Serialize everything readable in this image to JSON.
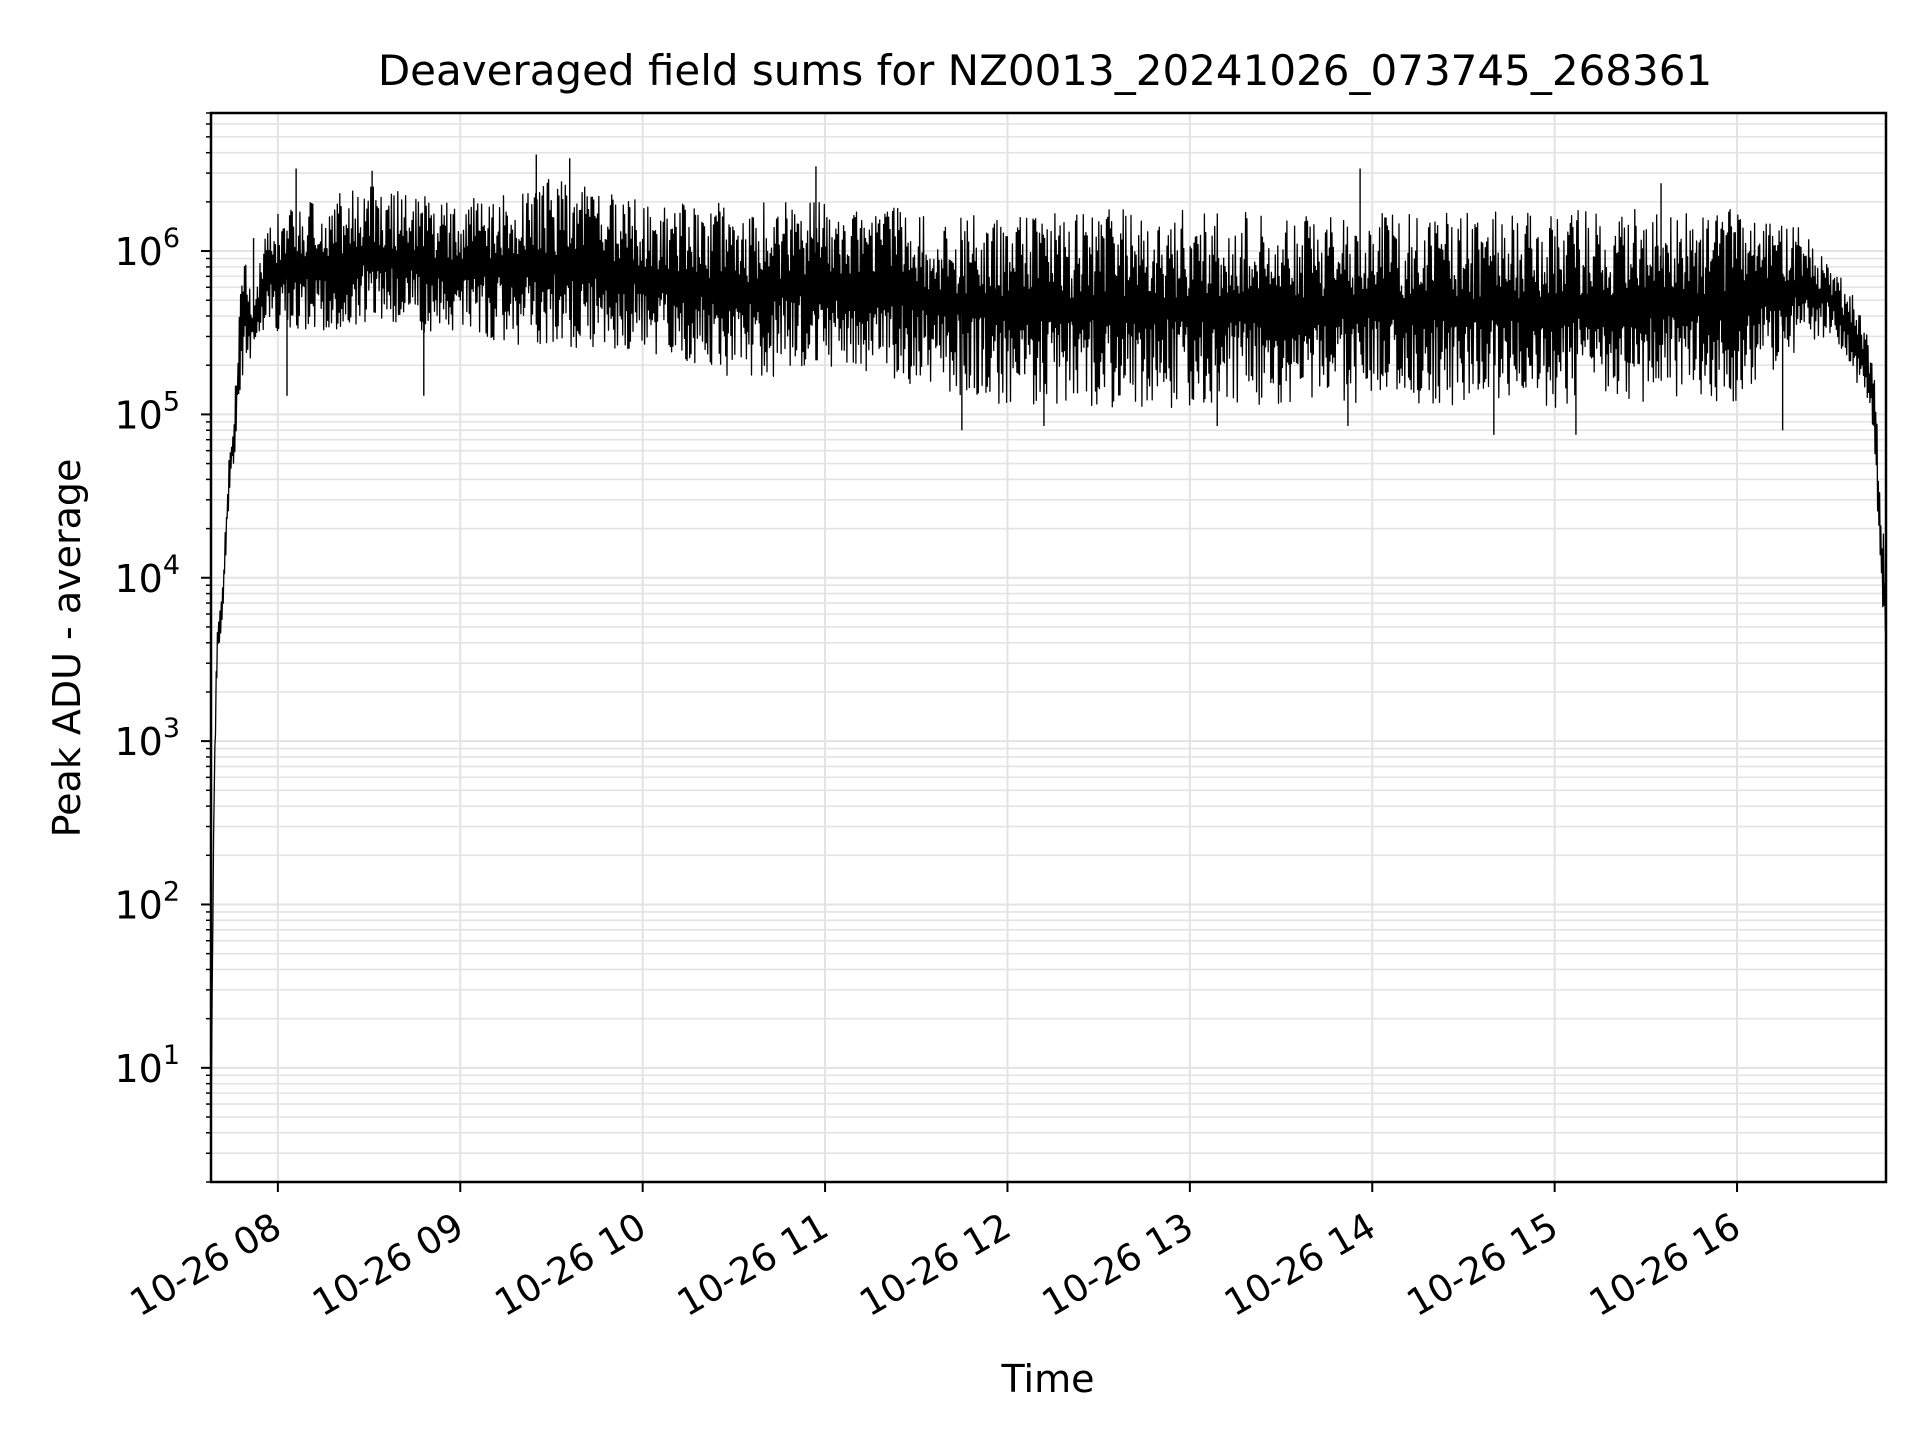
{
  "chart_data": {
    "type": "line",
    "title": "Deaveraged field sums for NZ0013_20241026_073745_268361",
    "xlabel": "Time",
    "ylabel": "Peak ADU - average",
    "y_scale": "log",
    "ylim": [
      2.0,
      7000000
    ],
    "xlim": [
      "2024-10-26 07:38",
      "2024-10-26 16:49"
    ],
    "grid": true,
    "grid_minor": true,
    "line_color": "#000000",
    "x_ticks": [
      {
        "at": "2024-10-26 08:00",
        "label": "10-26 08"
      },
      {
        "at": "2024-10-26 09:00",
        "label": "10-26 09"
      },
      {
        "at": "2024-10-26 10:00",
        "label": "10-26 10"
      },
      {
        "at": "2024-10-26 11:00",
        "label": "10-26 11"
      },
      {
        "at": "2024-10-26 12:00",
        "label": "10-26 12"
      },
      {
        "at": "2024-10-26 13:00",
        "label": "10-26 13"
      },
      {
        "at": "2024-10-26 14:00",
        "label": "10-26 14"
      },
      {
        "at": "2024-10-26 15:00",
        "label": "10-26 15"
      },
      {
        "at": "2024-10-26 16:00",
        "label": "10-26 16"
      }
    ],
    "y_ticks": [
      {
        "value": 10,
        "base": "10",
        "exp": "1"
      },
      {
        "value": 100,
        "base": "10",
        "exp": "2"
      },
      {
        "value": 1000,
        "base": "10",
        "exp": "3"
      },
      {
        "value": 10000,
        "base": "10",
        "exp": "4"
      },
      {
        "value": 100000,
        "base": "10",
        "exp": "5"
      },
      {
        "value": 1000000,
        "base": "10",
        "exp": "6"
      }
    ],
    "series": [
      {
        "envelope": [
          {
            "t": "2024-10-26 07:38",
            "low": 4,
            "high": 4
          },
          {
            "t": "2024-10-26 07:39",
            "low": 300,
            "high": 800
          },
          {
            "t": "2024-10-26 07:40",
            "low": 3000,
            "high": 5000
          },
          {
            "t": "2024-10-26 07:42",
            "low": 6000,
            "high": 12000
          },
          {
            "t": "2024-10-26 07:44",
            "low": 30000,
            "high": 60000
          },
          {
            "t": "2024-10-26 07:46",
            "low": 60000,
            "high": 150000
          },
          {
            "t": "2024-10-26 07:48",
            "low": 150000,
            "high": 1200000
          },
          {
            "t": "2024-10-26 07:52",
            "low": 250000,
            "high": 450000
          },
          {
            "t": "2024-10-26 07:56",
            "low": 350000,
            "high": 1500000
          },
          {
            "t": "2024-10-26 08:00",
            "low": 300000,
            "high": 1800000
          },
          {
            "t": "2024-10-26 08:30",
            "low": 350000,
            "high": 2500000
          },
          {
            "t": "2024-10-26 09:00",
            "low": 300000,
            "high": 2000000
          },
          {
            "t": "2024-10-26 09:30",
            "low": 250000,
            "high": 2800000
          },
          {
            "t": "2024-10-26 10:00",
            "low": 250000,
            "high": 2000000
          },
          {
            "t": "2024-10-26 10:30",
            "low": 150000,
            "high": 2000000
          },
          {
            "t": "2024-10-26 11:00",
            "low": 200000,
            "high": 2000000
          },
          {
            "t": "2024-10-26 11:30",
            "low": 150000,
            "high": 1800000
          },
          {
            "t": "2024-10-26 12:00",
            "low": 110000,
            "high": 1700000
          },
          {
            "t": "2024-10-26 12:30",
            "low": 110000,
            "high": 1800000
          },
          {
            "t": "2024-10-26 13:00",
            "low": 110000,
            "high": 1800000
          },
          {
            "t": "2024-10-26 13:30",
            "low": 110000,
            "high": 1700000
          },
          {
            "t": "2024-10-26 14:00",
            "low": 120000,
            "high": 1700000
          },
          {
            "t": "2024-10-26 14:30",
            "low": 110000,
            "high": 1700000
          },
          {
            "t": "2024-10-26 15:00",
            "low": 110000,
            "high": 1800000
          },
          {
            "t": "2024-10-26 15:30",
            "low": 120000,
            "high": 1800000
          },
          {
            "t": "2024-10-26 16:00",
            "low": 120000,
            "high": 1800000
          },
          {
            "t": "2024-10-26 16:20",
            "low": 250000,
            "high": 1400000
          },
          {
            "t": "2024-10-26 16:30",
            "low": 300000,
            "high": 900000
          },
          {
            "t": "2024-10-26 16:40",
            "low": 150000,
            "high": 500000
          },
          {
            "t": "2024-10-26 16:45",
            "low": 80000,
            "high": 200000
          },
          {
            "t": "2024-10-26 16:48",
            "low": 3000,
            "high": 20000
          }
        ],
        "spikes": [
          {
            "t": "2024-10-26 07:52",
            "value": 1200000
          },
          {
            "t": "2024-10-26 08:06",
            "value": 3200000
          },
          {
            "t": "2024-10-26 08:31",
            "value": 3100000
          },
          {
            "t": "2024-10-26 09:25",
            "value": 3900000
          },
          {
            "t": "2024-10-26 09:36",
            "value": 3700000
          },
          {
            "t": "2024-10-26 10:57",
            "value": 3300000
          },
          {
            "t": "2024-10-26 13:56",
            "value": 3200000
          },
          {
            "t": "2024-10-26 15:35",
            "value": 2600000
          },
          {
            "t": "2024-10-26 11:45",
            "value": 80000
          },
          {
            "t": "2024-10-26 12:12",
            "value": 85000
          },
          {
            "t": "2024-10-26 13:09",
            "value": 85000
          },
          {
            "t": "2024-10-26 13:52",
            "value": 85000
          },
          {
            "t": "2024-10-26 14:40",
            "value": 75000
          },
          {
            "t": "2024-10-26 15:07",
            "value": 75000
          },
          {
            "t": "2024-10-26 16:15",
            "value": 80000
          },
          {
            "t": "2024-10-26 08:03",
            "value": 130000
          },
          {
            "t": "2024-10-26 08:48",
            "value": 130000
          }
        ]
      }
    ]
  }
}
